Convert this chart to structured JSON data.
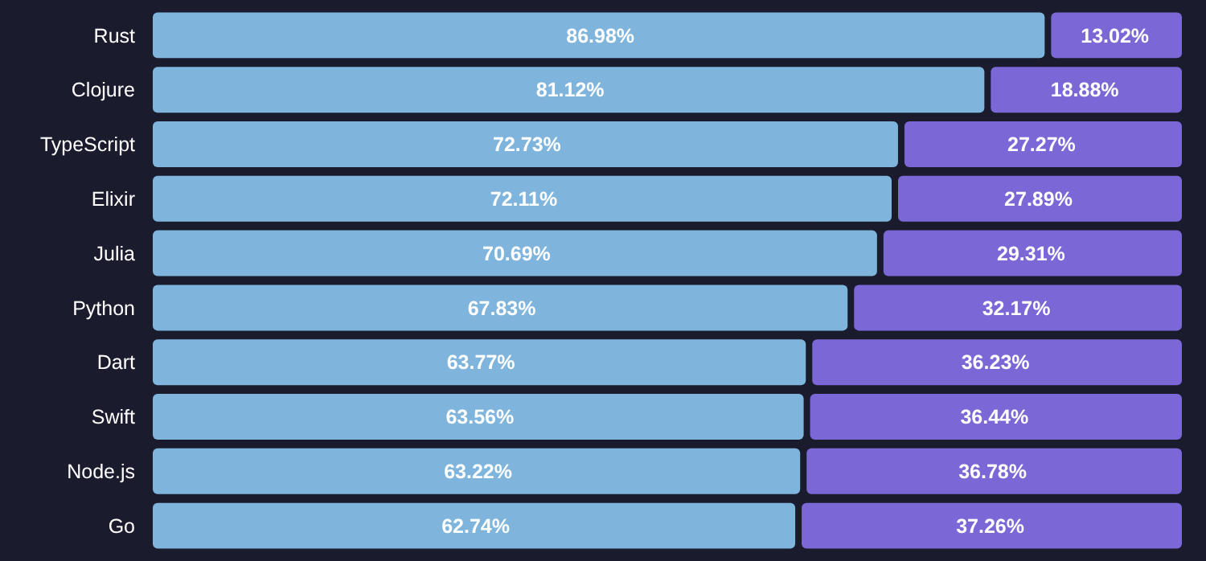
{
  "chart_data": {
    "type": "bar",
    "orientation": "horizontal",
    "stacked": true,
    "categories": [
      "Rust",
      "Clojure",
      "TypeScript",
      "Elixir",
      "Julia",
      "Python",
      "Dart",
      "Swift",
      "Node.js",
      "Go"
    ],
    "series": [
      {
        "color": "#7fb5dc",
        "values": [
          86.98,
          81.12,
          72.73,
          72.11,
          70.69,
          67.83,
          63.77,
          63.56,
          63.22,
          62.74
        ],
        "value_labels": [
          "86.98%",
          "81.12%",
          "72.73%",
          "72.11%",
          "70.69%",
          "67.83%",
          "63.77%",
          "63.56%",
          "63.22%",
          "62.74%"
        ]
      },
      {
        "color": "#7b67d6",
        "values": [
          13.02,
          18.88,
          27.27,
          27.89,
          29.31,
          32.17,
          36.23,
          36.44,
          36.78,
          37.26
        ],
        "value_labels": [
          "13.02%",
          "18.88%",
          "27.27%",
          "27.89%",
          "29.31%",
          "32.17%",
          "36.23%",
          "36.44%",
          "36.78%",
          "37.26%"
        ]
      }
    ],
    "xlim": [
      0,
      100
    ],
    "tick_labels": "y"
  }
}
